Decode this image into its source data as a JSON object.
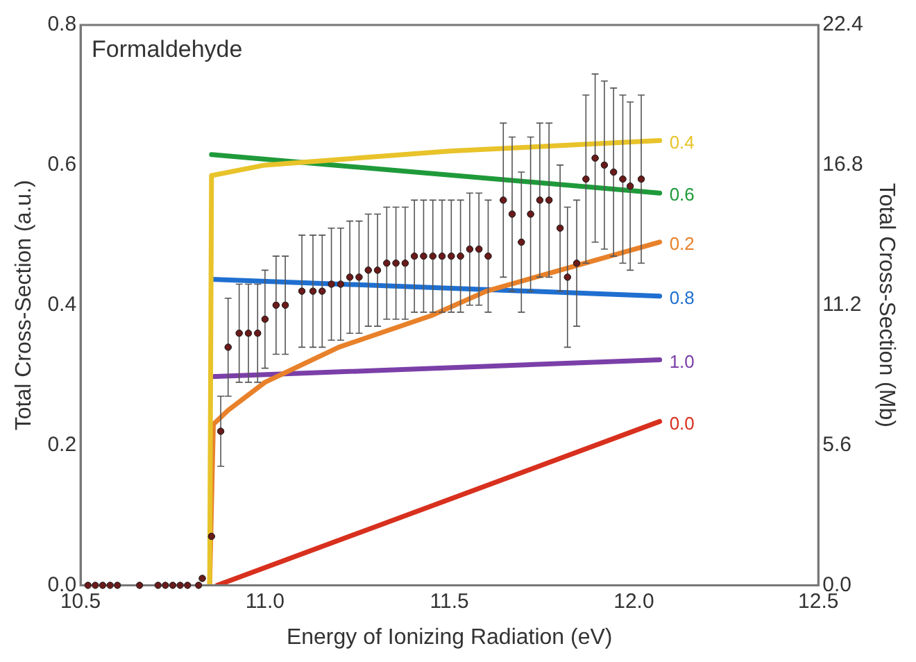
{
  "chart_data": {
    "type": "line",
    "title": "Formaldehyde",
    "xlabel": "Energy of Ionizing Radiation (eV)",
    "ylabel": "Total Cross-Section (a.u.)",
    "y2label": "Total Cross-Section (Mb)",
    "xlim": [
      10.5,
      12.5
    ],
    "xticks": [
      10.5,
      {
        "value": 11,
        "label": "11.0"
      },
      11.5,
      {
        "value": 12,
        "label": "12.0"
      },
      12.5
    ],
    "ylim": [
      0,
      0.8
    ],
    "yticks": [
      {
        "value": 0,
        "label": "0.0"
      },
      0.2,
      0.4,
      0.6,
      0.8
    ],
    "y2lim": [
      0,
      22.4
    ],
    "y2ticks": [
      {
        "value": 0,
        "label": "0.0"
      },
      5.6,
      11.2,
      16.8,
      22.4
    ],
    "grid": false,
    "legend": false,
    "series": [
      {
        "type": "line",
        "name": "0.4",
        "color": "#e8c32a",
        "marker": "none",
        "x": [
          10.85,
          10.855,
          11.0,
          11.5,
          12.07
        ],
        "values": [
          0,
          0.585,
          0.6,
          0.62,
          0.635
        ]
      },
      {
        "type": "line",
        "name": "0.6",
        "color": "#1f9a3a",
        "marker": "none",
        "x": [
          10.855,
          12.07
        ],
        "values": [
          0.615,
          0.56
        ]
      },
      {
        "type": "line",
        "name": "0.2",
        "color": "#e8812a",
        "marker": "none",
        "x": [
          10.85,
          10.86,
          10.9,
          11.0,
          11.2,
          11.45,
          11.6,
          11.8,
          12.07
        ],
        "values": [
          0,
          0.23,
          0.25,
          0.29,
          0.34,
          0.385,
          0.42,
          0.45,
          0.49
        ]
      },
      {
        "type": "line",
        "name": "0.8",
        "color": "#1f6fd0",
        "marker": "none",
        "x": [
          10.855,
          12.07
        ],
        "values": [
          0.437,
          0.413
        ]
      },
      {
        "type": "line",
        "name": "1.0",
        "color": "#7b3fa8",
        "marker": "none",
        "x": [
          10.855,
          12.07
        ],
        "values": [
          0.298,
          0.322
        ]
      },
      {
        "type": "line",
        "name": "0.0",
        "color": "#d8301e",
        "marker": "none",
        "x": [
          10.87,
          12.07
        ],
        "values": [
          0,
          0.234
        ]
      },
      {
        "type": "scatter",
        "color": "#6b1a1a",
        "marker": "circle",
        "x": [
          10.52,
          10.54,
          10.56,
          10.58,
          10.6,
          10.66,
          10.71,
          10.73,
          10.75,
          10.77,
          10.79,
          10.82,
          10.83,
          10.855,
          10.88,
          10.9,
          10.93,
          10.955,
          10.98,
          11.0,
          11.03,
          11.055,
          11.1,
          11.13,
          11.155,
          11.18,
          11.205,
          11.23,
          11.255,
          11.28,
          11.305,
          11.33,
          11.355,
          11.38,
          11.405,
          11.43,
          11.455,
          11.48,
          11.505,
          11.53,
          11.555,
          11.58,
          11.605,
          11.646,
          11.67,
          11.695,
          11.72,
          11.745,
          11.77,
          11.8,
          11.82,
          11.845,
          11.87,
          11.895,
          11.92,
          11.945,
          11.97,
          11.99,
          12.02
        ],
        "values": [
          0,
          0,
          0,
          0,
          0,
          0,
          0,
          0,
          0,
          0,
          0,
          0,
          0.01,
          0.07,
          0.22,
          0.34,
          0.36,
          0.36,
          0.36,
          0.38,
          0.4,
          0.4,
          0.42,
          0.42,
          0.42,
          0.43,
          0.43,
          0.44,
          0.44,
          0.45,
          0.45,
          0.46,
          0.46,
          0.46,
          0.47,
          0.47,
          0.47,
          0.47,
          0.47,
          0.47,
          0.48,
          0.48,
          0.47,
          0.55,
          0.53,
          0.49,
          0.53,
          0.55,
          0.55,
          0.51,
          0.44,
          0.46,
          0.58,
          0.61,
          0.6,
          0.59,
          0.58,
          0.57,
          0.58
        ],
        "errors": [
          null,
          null,
          null,
          null,
          null,
          null,
          null,
          null,
          null,
          null,
          null,
          null,
          null,
          null,
          0.05,
          0.07,
          0.07,
          0.07,
          0.07,
          0.07,
          0.07,
          0.07,
          0.08,
          0.08,
          0.08,
          0.08,
          0.08,
          0.08,
          0.08,
          0.08,
          0.08,
          0.08,
          0.08,
          0.08,
          0.08,
          0.08,
          0.08,
          0.08,
          0.08,
          0.08,
          0.08,
          0.08,
          0.08,
          0.11,
          0.11,
          0.1,
          0.11,
          0.11,
          0.11,
          0.09,
          0.1,
          0.09,
          0.12,
          0.12,
          0.12,
          0.12,
          0.12,
          0.12,
          0.12
        ]
      }
    ]
  }
}
